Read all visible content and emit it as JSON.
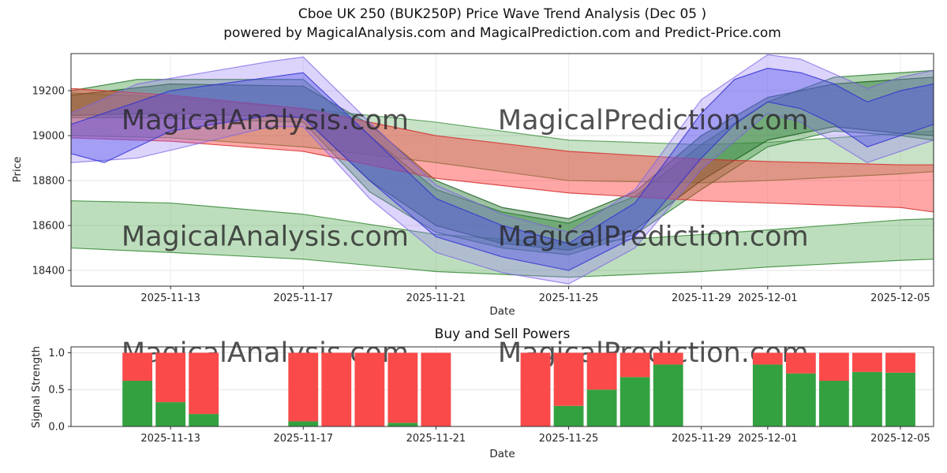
{
  "watermarks": {
    "left": "MagicalAnalysis.com",
    "right": "MagicalPrediction.com"
  },
  "chart_data": [
    {
      "type": "area",
      "name": "price-wave-trend",
      "title": "Cboe UK 250 (BUK250P) Price Wave Trend Analysis (Dec 05 )",
      "subtitle": "powered by MagicalAnalysis.com and MagicalPrediction.com and Predict-Price.com",
      "xlabel": "Date",
      "ylabel": "Price",
      "x_range": [
        "2025-11-10",
        "2025-12-06"
      ],
      "ylim": [
        18330,
        19365
      ],
      "yticks": [
        18400,
        18600,
        18800,
        19000,
        19200
      ],
      "xticks": [
        "2025-11-13",
        "2025-11-17",
        "2025-11-21",
        "2025-11-25",
        "2025-11-29",
        "2025-12-01",
        "2025-12-05"
      ],
      "grid": true,
      "legend": "none",
      "bands": [
        {
          "name": "support-zone",
          "color": "rgba(97,176,97,0.42)",
          "stroke": "rgba(58,140,58,0.85)",
          "points": [
            [
              "2025-11-10",
              18500,
              18710
            ],
            [
              "2025-11-13",
              18480,
              18700
            ],
            [
              "2025-11-17",
              18450,
              18650
            ],
            [
              "2025-11-21",
              18395,
              18560
            ],
            [
              "2025-11-25",
              18370,
              18520
            ],
            [
              "2025-11-29",
              18395,
              18560
            ],
            [
              "2025-12-01",
              18415,
              18580
            ],
            [
              "2025-12-05",
              18445,
              18625
            ],
            [
              "2025-12-06",
              18450,
              18630
            ]
          ]
        },
        {
          "name": "upper-green-channel",
          "color": "rgba(110,180,110,0.38)",
          "stroke": "rgba(70,150,70,0.8)",
          "points": [
            [
              "2025-11-10",
              19000,
              19190
            ],
            [
              "2025-11-13",
              18990,
              19170
            ],
            [
              "2025-11-17",
              18950,
              19120
            ],
            [
              "2025-11-21",
              18880,
              19060
            ],
            [
              "2025-11-25",
              18800,
              18980
            ],
            [
              "2025-11-29",
              18790,
              18960
            ],
            [
              "2025-12-01",
              18800,
              18970
            ],
            [
              "2025-12-05",
              18830,
              19010
            ],
            [
              "2025-12-06",
              18840,
              19020
            ]
          ]
        },
        {
          "name": "green-wave-outer",
          "color": "rgba(70,152,70,0.42)",
          "stroke": "rgba(46,125,50,0.85)",
          "points": [
            [
              "2025-11-10",
              19080,
              19200
            ],
            [
              "2025-11-12",
              19080,
              19250
            ],
            [
              "2025-11-17",
              19060,
              19250
            ],
            [
              "2025-11-19",
              18750,
              19000
            ],
            [
              "2025-11-21",
              18570,
              18760
            ],
            [
              "2025-11-23",
              18500,
              18660
            ],
            [
              "2025-11-25",
              18470,
              18610
            ],
            [
              "2025-11-27",
              18560,
              18730
            ],
            [
              "2025-11-29",
              18760,
              18960
            ],
            [
              "2025-12-01",
              18950,
              19150
            ],
            [
              "2025-12-03",
              19020,
              19260
            ],
            [
              "2025-12-05",
              19000,
              19280
            ],
            [
              "2025-12-06",
              18980,
              19290
            ]
          ]
        },
        {
          "name": "green-wave-inner",
          "color": "rgba(38,120,52,0.45)",
          "stroke": "rgba(27,94,32,0.85)",
          "points": [
            [
              "2025-11-10",
              19090,
              19180
            ],
            [
              "2025-11-13",
              19100,
              19230
            ],
            [
              "2025-11-17",
              19080,
              19220
            ],
            [
              "2025-11-19",
              18800,
              19050
            ],
            [
              "2025-11-21",
              18600,
              18800
            ],
            [
              "2025-11-23",
              18520,
              18680
            ],
            [
              "2025-11-25",
              18490,
              18630
            ],
            [
              "2025-11-27",
              18580,
              18750
            ],
            [
              "2025-11-29",
              18800,
              19000
            ],
            [
              "2025-12-01",
              18980,
              19170
            ],
            [
              "2025-12-03",
              19040,
              19230
            ],
            [
              "2025-12-05",
              19010,
              19250
            ],
            [
              "2025-12-06",
              19000,
              19260
            ]
          ]
        },
        {
          "name": "resistance-zone",
          "color": "rgba(255,45,45,0.42)",
          "stroke": "rgba(211,40,40,0.8)",
          "points": [
            [
              "2025-11-10",
              18990,
              19210
            ],
            [
              "2025-11-13",
              18975,
              19180
            ],
            [
              "2025-11-17",
              18930,
              19120
            ],
            [
              "2025-11-21",
              18810,
              19000
            ],
            [
              "2025-11-25",
              18745,
              18930
            ],
            [
              "2025-11-29",
              18710,
              18895
            ],
            [
              "2025-12-01",
              18700,
              18885
            ],
            [
              "2025-12-05",
              18680,
              18870
            ],
            [
              "2025-12-06",
              18660,
              18870
            ]
          ]
        },
        {
          "name": "violet-wave",
          "color": "rgba(148,120,245,0.32)",
          "stroke": "rgba(123,97,230,0.7)",
          "points": [
            [
              "2025-11-10",
              18880,
              19100
            ],
            [
              "2025-11-12",
              18900,
              19230
            ],
            [
              "2025-11-16",
              19040,
              19330
            ],
            [
              "2025-11-17",
              19040,
              19350
            ],
            [
              "2025-11-19",
              18720,
              19060
            ],
            [
              "2025-11-21",
              18480,
              18780
            ],
            [
              "2025-11-23",
              18390,
              18650
            ],
            [
              "2025-11-25",
              18340,
              18570
            ],
            [
              "2025-11-27",
              18500,
              18760
            ],
            [
              "2025-11-29",
              18850,
              19160
            ],
            [
              "2025-12-01",
              19100,
              19360
            ],
            [
              "2025-12-02",
              19060,
              19340
            ],
            [
              "2025-12-04",
              18880,
              19210
            ],
            [
              "2025-12-05",
              18930,
              19260
            ],
            [
              "2025-12-06",
              18980,
              19290
            ]
          ]
        },
        {
          "name": "blue-wave",
          "color": "rgba(72,72,235,0.38)",
          "stroke": "rgba(48,48,210,0.8)",
          "points": [
            [
              "2025-11-10",
              18920,
              19050
            ],
            [
              "2025-11-11",
              18880,
              19100
            ],
            [
              "2025-11-13",
              19020,
              19200
            ],
            [
              "2025-11-16",
              19090,
              19260
            ],
            [
              "2025-11-17",
              19080,
              19280
            ],
            [
              "2025-11-19",
              18800,
              19000
            ],
            [
              "2025-11-21",
              18550,
              18720
            ],
            [
              "2025-11-23",
              18460,
              18600
            ],
            [
              "2025-11-25",
              18400,
              18520
            ],
            [
              "2025-11-27",
              18550,
              18700
            ],
            [
              "2025-11-29",
              18900,
              19100
            ],
            [
              "2025-11-30",
              19050,
              19250
            ],
            [
              "2025-12-01",
              19150,
              19300
            ],
            [
              "2025-12-02",
              19120,
              19280
            ],
            [
              "2025-12-03",
              19050,
              19230
            ],
            [
              "2025-12-04",
              18950,
              19150
            ],
            [
              "2025-12-05",
              19000,
              19200
            ],
            [
              "2025-12-06",
              19050,
              19230
            ]
          ]
        }
      ]
    },
    {
      "type": "bar",
      "name": "buy-sell-powers",
      "title": "Buy and Sell Powers",
      "xlabel": "Date",
      "ylabel": "Signal Strength",
      "x_range": [
        "2025-11-10",
        "2025-12-06"
      ],
      "ylim": [
        0,
        1.08
      ],
      "yticks": [
        0,
        0.5,
        1
      ],
      "ytick_decimals": 1,
      "xticks": [
        "2025-11-13",
        "2025-11-17",
        "2025-11-21",
        "2025-11-25",
        "2025-11-29",
        "2025-12-01",
        "2025-12-05"
      ],
      "bar_total": 1.0,
      "categories": [
        "2025-11-12",
        "2025-11-13",
        "2025-11-14",
        "2025-11-17",
        "2025-11-18",
        "2025-11-19",
        "2025-11-20",
        "2025-11-21",
        "2025-11-24",
        "2025-11-25",
        "2025-11-26",
        "2025-11-27",
        "2025-11-28",
        "2025-12-01",
        "2025-12-02",
        "2025-12-03",
        "2025-12-04",
        "2025-12-05"
      ],
      "series": [
        {
          "name": "Buy Power",
          "color": "#34a141",
          "values": [
            0.62,
            0.33,
            0.17,
            0.07,
            0,
            0,
            0.05,
            0,
            0,
            0.28,
            0.5,
            0.67,
            0.84,
            0.84,
            0.72,
            0.62,
            0.74,
            0.73
          ]
        },
        {
          "name": "Sell Power",
          "color": "#fa4a4a",
          "values": [
            0.38,
            0.67,
            0.83,
            0.93,
            1,
            1,
            0.95,
            1,
            1,
            0.72,
            0.5,
            0.33,
            0.16,
            0.16,
            0.28,
            0.38,
            0.26,
            0.27
          ]
        }
      ]
    }
  ]
}
